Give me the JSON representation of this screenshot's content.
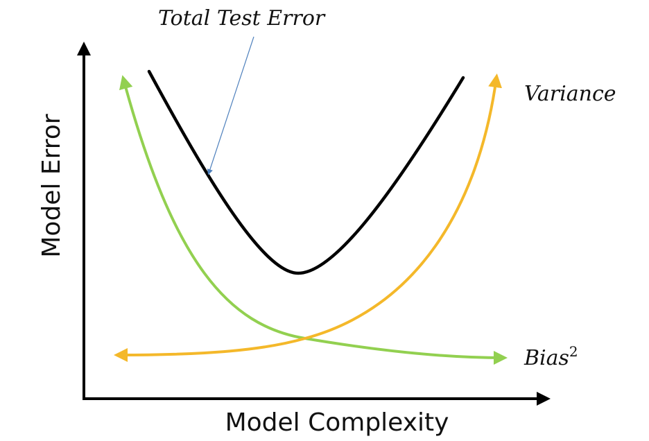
{
  "labels": {
    "total_test_error": "Total Test Error",
    "variance": "Variance",
    "bias": "Bias",
    "bias_superscript": "2",
    "y_axis": "Model Error",
    "x_axis": "Model Complexity"
  },
  "colors": {
    "total_error": "#000000",
    "bias": "#92d050",
    "variance": "#f4b82a",
    "pointer": "#4f81bd",
    "axis": "#000000"
  }
}
